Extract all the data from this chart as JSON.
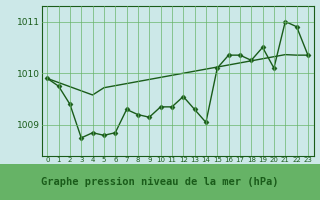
{
  "title": "Graphe pression niveau de la mer (hPa)",
  "x_values": [
    0,
    1,
    2,
    3,
    4,
    5,
    6,
    7,
    8,
    9,
    10,
    11,
    12,
    13,
    14,
    15,
    16,
    17,
    18,
    19,
    20,
    21,
    22,
    23
  ],
  "x_labels": [
    "0",
    "1",
    "2",
    "3",
    "4",
    "5",
    "6",
    "7",
    "8",
    "9",
    "10",
    "11",
    "12",
    "13",
    "14",
    "15",
    "16",
    "17",
    "18",
    "19",
    "20",
    "21",
    "22",
    "23"
  ],
  "y_main": [
    1009.9,
    1009.75,
    1009.4,
    1008.75,
    1008.85,
    1008.8,
    1008.85,
    1009.3,
    1009.2,
    1009.15,
    1009.35,
    1009.35,
    1009.55,
    1009.3,
    1009.05,
    1010.1,
    1010.35,
    1010.35,
    1010.25,
    1010.5,
    1010.1,
    1011.0,
    1010.9,
    1010.35
  ],
  "y_trend": [
    1009.9,
    1009.82,
    1009.74,
    1009.66,
    1009.58,
    1009.72,
    1009.76,
    1009.8,
    1009.84,
    1009.88,
    1009.92,
    1009.96,
    1010.0,
    1010.04,
    1010.08,
    1010.12,
    1010.16,
    1010.2,
    1010.24,
    1010.28,
    1010.32,
    1010.36,
    1010.35,
    1010.35
  ],
  "ylim": [
    1008.4,
    1011.3
  ],
  "yticks": [
    1009,
    1010,
    1011
  ],
  "bg_color": "#cce8e8",
  "grid_color": "#66b366",
  "line_color": "#1a5c1a",
  "title_bg": "#66b366",
  "title_color": "#1a5c1a"
}
